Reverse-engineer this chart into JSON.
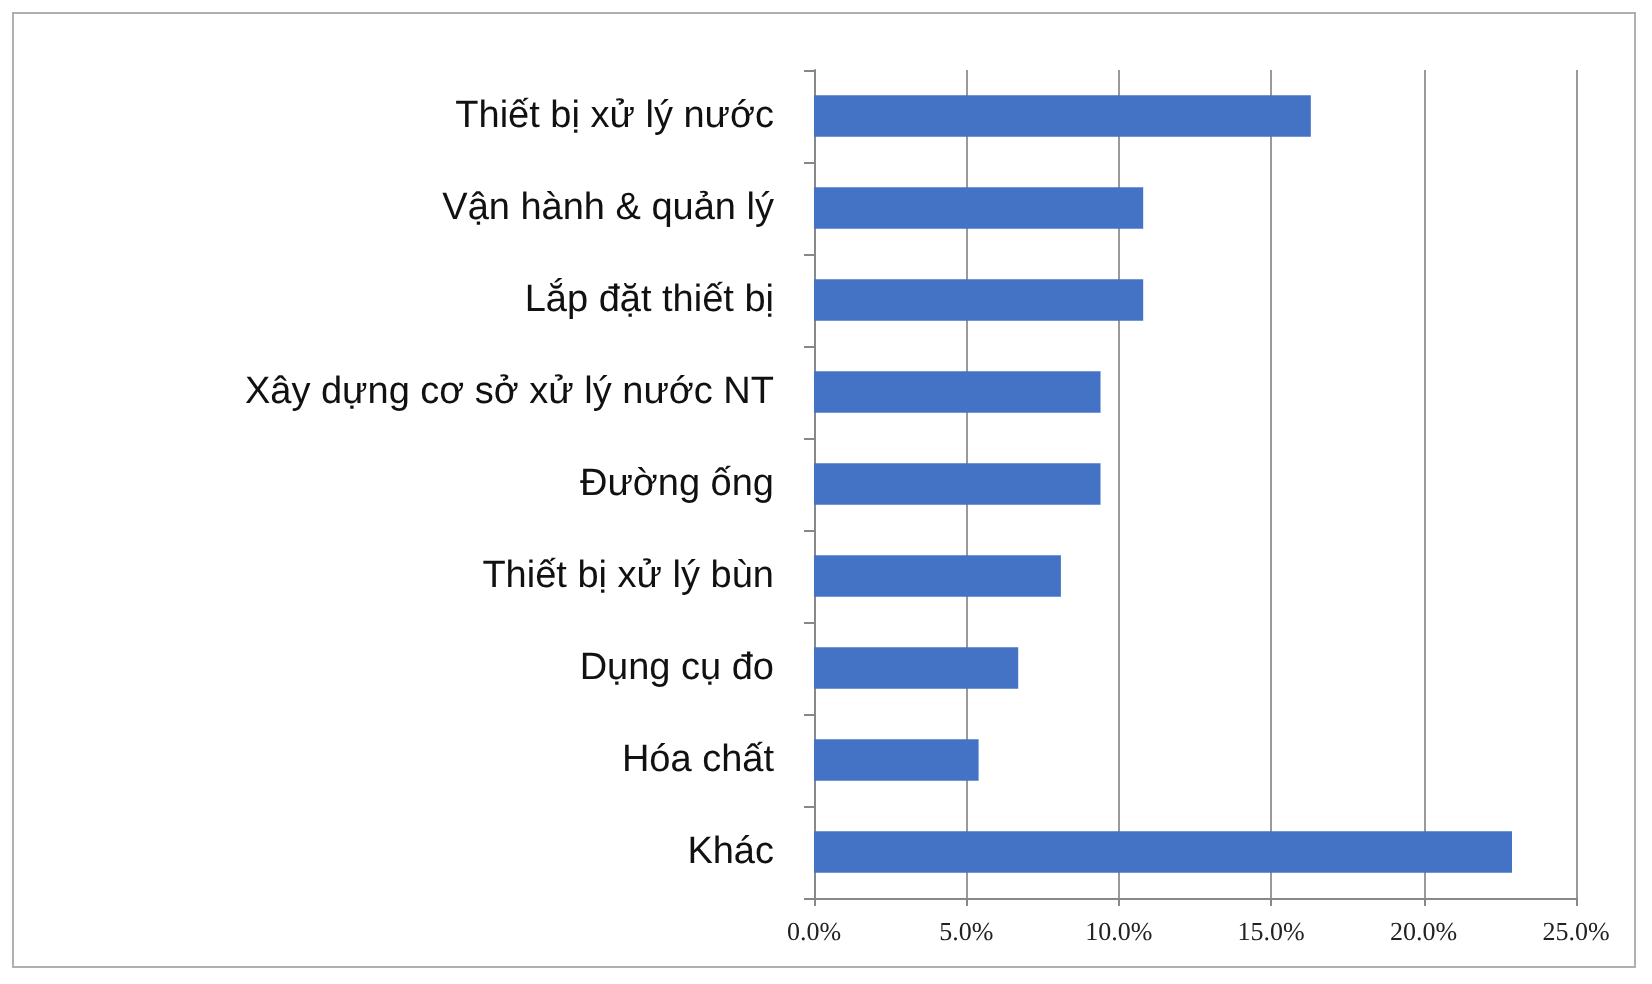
{
  "chart_data": {
    "type": "bar",
    "orientation": "horizontal",
    "categories": [
      "Thiết bị xử lý nước",
      "Vận hành & quản lý",
      "Lắp đặt thiết bị",
      "Xây dựng cơ sở xử lý nước NT",
      "Đường ống",
      "Thiết bị xử lý bùn",
      "Dụng cụ đo",
      "Hóa chất",
      "Khác"
    ],
    "values": [
      16.3,
      10.8,
      10.8,
      9.4,
      9.4,
      8.1,
      6.7,
      5.4,
      22.9
    ],
    "color": "#4472c4",
    "xlim": [
      0,
      25
    ],
    "xticks": [
      {
        "value": 0,
        "label": "0.0%"
      },
      {
        "value": 5,
        "label": "5.0%"
      },
      {
        "value": 10,
        "label": "10.0%"
      },
      {
        "value": 15,
        "label": "15.0%"
      },
      {
        "value": 20,
        "label": "20.0%"
      },
      {
        "value": 25,
        "label": "25.0%"
      }
    ],
    "grid": "x"
  }
}
